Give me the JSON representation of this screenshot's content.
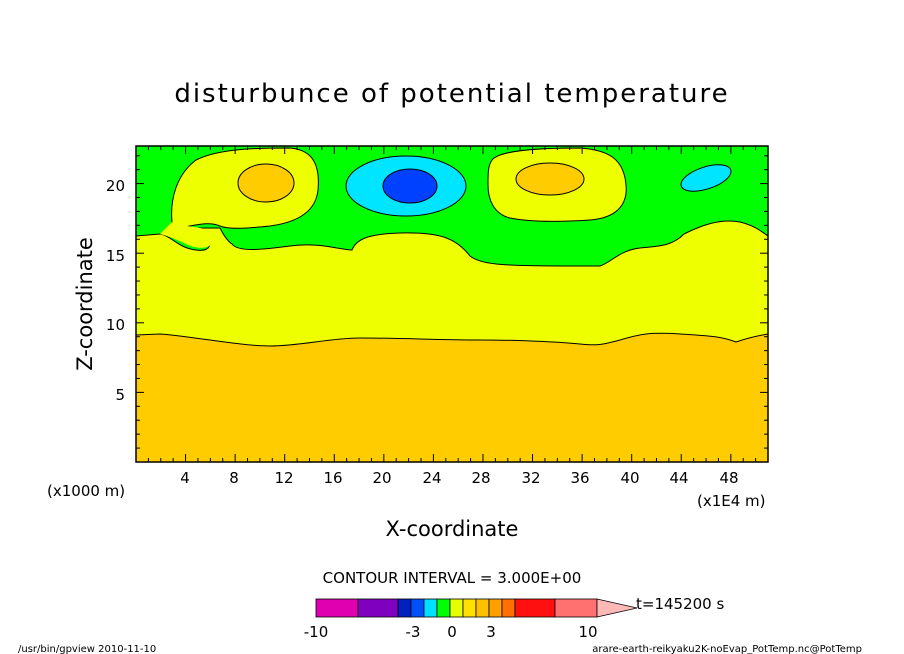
{
  "chart_data": {
    "type": "heatmap",
    "title": "disturbunce of potential temperature",
    "xlabel": "X-coordinate",
    "ylabel": "Z-coordinate",
    "x_scale_note": "(x1E4 m)",
    "y_scale_note": "(x1000 m)",
    "x_tick_labels": [
      "4",
      "8",
      "12",
      "16",
      "20",
      "24",
      "28",
      "32",
      "36",
      "40",
      "44",
      "48"
    ],
    "y_tick_labels": [
      "5",
      "10",
      "15",
      "20"
    ],
    "xlim": [
      0,
      51
    ],
    "ylim": [
      0,
      22.7
    ],
    "contour_interval_text": "CONTOUR INTERVAL = 3.000E+00",
    "time_label": "t=145200 s",
    "colorbar_tick_labels": [
      "-10",
      "-3",
      "0",
      "3",
      "10"
    ],
    "colorbar_colors": [
      "#e000b0",
      "#8000c0",
      "#0020c0",
      "#0050ff",
      "#00e0ff",
      "#00ff00",
      "#e6ff00",
      "#ffe000",
      "#ffc000",
      "#ffa000",
      "#ff7000",
      "#ff1010",
      "#ff7070",
      "#ffb8b8"
    ],
    "regions": [
      {
        "level": "0 to 3",
        "color": "#00ff00"
      },
      {
        "level": "3 to 6",
        "color": "#e6ff00"
      },
      {
        "level": "6 to 9",
        "color": "#ffcc00"
      },
      {
        "level": "-3 to 0",
        "color": "#00e5ff"
      },
      {
        "level": "-6 to -3",
        "color": "#0050ff"
      }
    ],
    "colors": {
      "green": "#00ff00",
      "yellow": "#eeff00",
      "orange": "#ffcc00",
      "cyan": "#00e5ff",
      "blue": "#0040ff"
    },
    "footer_left": "/usr/bin/gpview   2010-11-10",
    "footer_right": "arare-earth-reikyaku2K-noEvap_PotTemp.nc@PotTemp"
  }
}
